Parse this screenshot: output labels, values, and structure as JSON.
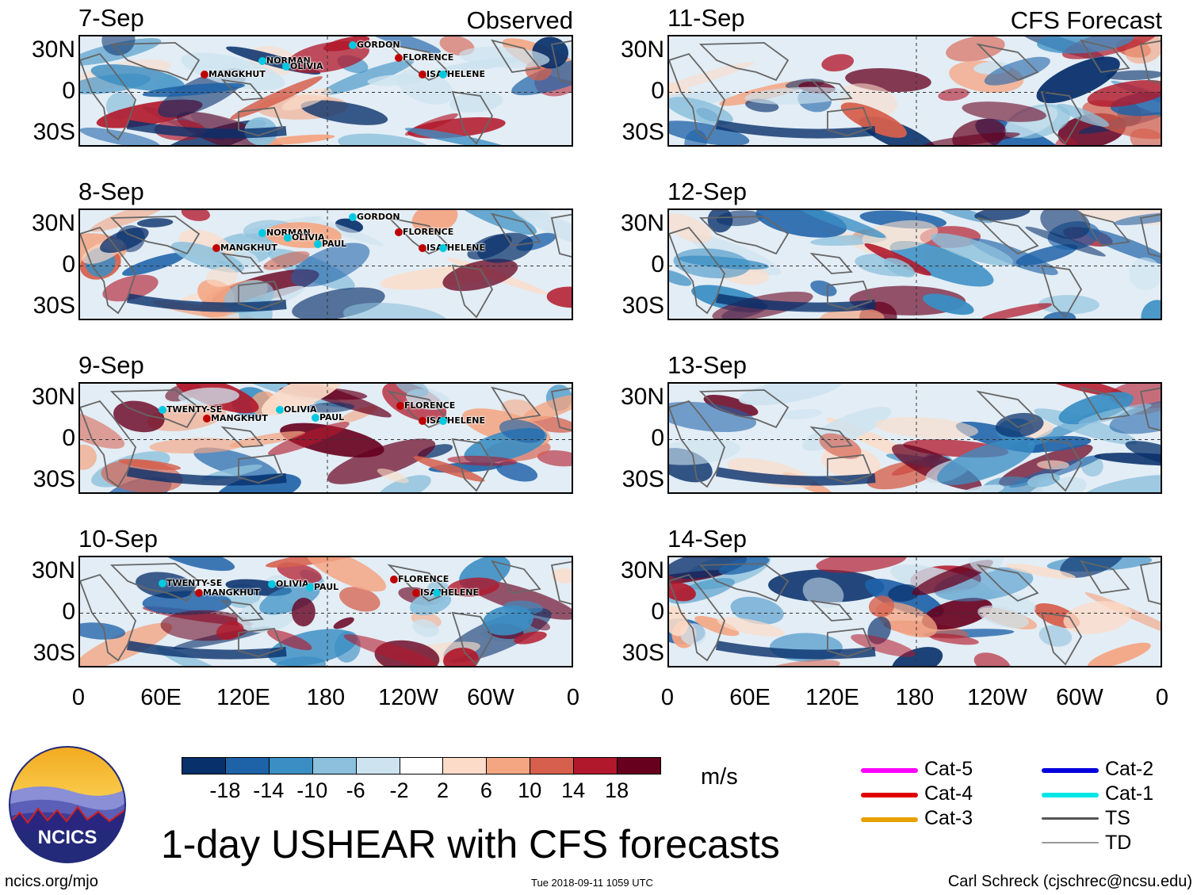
{
  "columns": {
    "left": "Observed",
    "right": "CFS Forecast"
  },
  "panels": [
    {
      "date": "7-Sep",
      "col": 0,
      "row": 0,
      "storms": [
        [
          "MANGKHUT",
          165,
          97
        ],
        [
          "NORMAN",
          238,
          80
        ],
        [
          "OLIVIA",
          268,
          87
        ],
        [
          "GORDON",
          352,
          60
        ],
        [
          "FLORENCE",
          410,
          76
        ],
        [
          "ISAA",
          440,
          97
        ],
        [
          "HELENE",
          466,
          97
        ]
      ]
    },
    {
      "date": "8-Sep",
      "col": 0,
      "row": 1,
      "storms": [
        [
          "MANGKHUT",
          180,
          316
        ],
        [
          "NORMAN",
          238,
          297
        ],
        [
          "OLIVIA",
          270,
          303
        ],
        [
          "PAUL",
          308,
          311
        ],
        [
          "GORDON",
          352,
          277
        ],
        [
          "FLORENCE",
          410,
          296
        ],
        [
          "ISAA",
          440,
          316
        ],
        [
          "HELENE",
          466,
          316
        ]
      ]
    },
    {
      "date": "9-Sep",
      "col": 0,
      "row": 2,
      "storms": [
        [
          "TWENTY-SE",
          112,
          520
        ],
        [
          "MANGKHUT",
          168,
          531
        ],
        [
          "OLIVIA",
          260,
          520
        ],
        [
          "PAUL",
          305,
          530
        ],
        [
          "FLORENCE",
          412,
          515
        ],
        [
          "ISAA",
          440,
          534
        ],
        [
          "HELENE",
          466,
          534
        ]
      ]
    },
    {
      "date": "10-Sep",
      "col": 0,
      "row": 3,
      "storms": [
        [
          "TWENTY-SE",
          112,
          739
        ],
        [
          "MANGKHUT",
          158,
          751
        ],
        [
          "OLIVIA",
          250,
          740
        ],
        [
          "PAUL",
          298,
          744
        ],
        [
          "FLORENCE",
          404,
          734
        ],
        [
          "ISAA",
          432,
          751
        ],
        [
          "HELENE",
          458,
          751
        ]
      ]
    },
    {
      "date": "11-Sep",
      "col": 1,
      "row": 0,
      "storms": []
    },
    {
      "date": "12-Sep",
      "col": 1,
      "row": 1,
      "storms": []
    },
    {
      "date": "13-Sep",
      "col": 1,
      "row": 2,
      "storms": []
    },
    {
      "date": "14-Sep",
      "col": 1,
      "row": 3,
      "storms": []
    }
  ],
  "y_ticks": [
    "30N",
    "0",
    "30S"
  ],
  "x_ticks": [
    "0",
    "60E",
    "120E",
    "180",
    "120W",
    "60W",
    "0"
  ],
  "colorbar": {
    "colors": [
      "#08306b",
      "#1e62a8",
      "#3a8ec4",
      "#8cc0dc",
      "#cde3ef",
      "#ffffff",
      "#fcdcc8",
      "#f4a582",
      "#d6604d",
      "#b2182b",
      "#67001f"
    ],
    "labels": [
      "-18",
      "-14",
      "-10",
      "-6",
      "-2",
      "2",
      "6",
      "10",
      "14",
      "18"
    ],
    "units": "m/s"
  },
  "legend": [
    {
      "label": "Cat-5",
      "color": "#ff00ff",
      "col": 0,
      "row": 0
    },
    {
      "label": "Cat-4",
      "color": "#e00000",
      "col": 0,
      "row": 1
    },
    {
      "label": "Cat-3",
      "color": "#e8a000",
      "col": 0,
      "row": 2
    },
    {
      "label": "Cat-2",
      "color": "#0000dd",
      "col": 1,
      "row": 0
    },
    {
      "label": "Cat-1",
      "color": "#00e6e6",
      "col": 1,
      "row": 1
    },
    {
      "label": "TS",
      "color": "#555555",
      "col": 1,
      "row": 2
    },
    {
      "label": "TD",
      "color": "#999999",
      "col": 1,
      "row": 3
    }
  ],
  "title": "1-day USHEAR with CFS forecasts",
  "logo_text": "NCICS",
  "footer": {
    "left": "ncics.org/mjo",
    "center": "Tue 2018-09-11 1059 UTC",
    "right": "Carl Schreck (cjschrec@ncsu.edu)"
  }
}
